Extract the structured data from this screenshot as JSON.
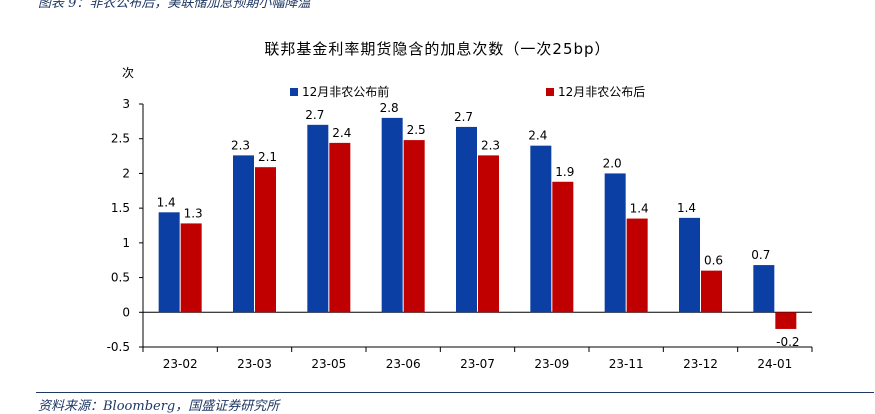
{
  "caption": "图表 9：非农公布后，美联储加息预期小幅降温",
  "source": "资料来源：Bloomberg，国盛证券研究所",
  "chart_data": {
    "type": "bar",
    "title": "联邦基金利率期货隐含的加息次数（一次25bp）",
    "ylabel": "次",
    "xlabel": "",
    "categories": [
      "23-02",
      "23-03",
      "23-05",
      "23-06",
      "23-07",
      "23-09",
      "23-11",
      "23-12",
      "24-01"
    ],
    "series": [
      {
        "name": "12月非农公布前",
        "color": "#0b3fa3",
        "values": [
          1.44,
          2.26,
          2.7,
          2.8,
          2.67,
          2.4,
          2.0,
          1.36,
          0.68
        ],
        "labels": [
          "1.4",
          "2.3",
          "2.7",
          "2.8",
          "2.7",
          "2.4",
          "2.0",
          "1.4",
          "0.7"
        ]
      },
      {
        "name": "12月非农公布后",
        "color": "#c00000",
        "values": [
          1.28,
          2.09,
          2.44,
          2.48,
          2.26,
          1.88,
          1.35,
          0.6,
          -0.24
        ],
        "labels": [
          "1.3",
          "2.1",
          "2.4",
          "2.5",
          "2.3",
          "1.9",
          "1.4",
          "0.6",
          "-0.2"
        ]
      }
    ],
    "ylim": [
      -0.5,
      3
    ],
    "yticks": [
      "3",
      "2.5",
      "2",
      "1.5",
      "1",
      "0.5",
      "0",
      "-0.5"
    ],
    "legend_position": "top",
    "grid": false
  }
}
